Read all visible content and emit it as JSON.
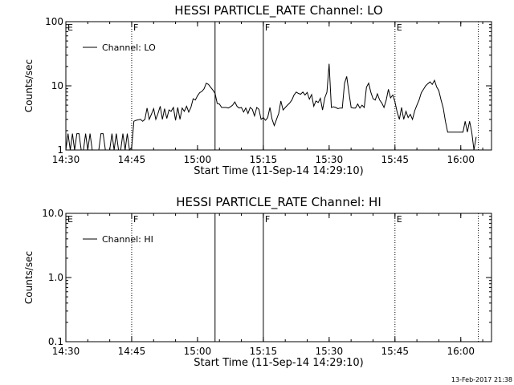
{
  "footer": {
    "timestamp": "13-Feb-2017 21:38"
  },
  "chart_data": [
    {
      "type": "line",
      "title": "HESSI PARTICLE_RATE Channel: LO",
      "xlabel": "Start Time (11-Sep-14 14:29:10)",
      "ylabel": "Counts/sec",
      "yscale": "log",
      "ylim": [
        1,
        100
      ],
      "xlim": [
        "14:30",
        "16:07"
      ],
      "x_ticks": [
        "14:30",
        "14:45",
        "15:00",
        "15:15",
        "15:30",
        "15:45",
        "16:00"
      ],
      "y_ticks": [
        "1",
        "10",
        "100"
      ],
      "legend": {
        "label": "Channel: LO",
        "position": "top-left"
      },
      "events": [
        {
          "label": "E",
          "time": "14:30",
          "style": "solid"
        },
        {
          "label": "F",
          "time": "14:45",
          "style": "dotted"
        },
        {
          "label": "",
          "time": "15:04",
          "style": "solid"
        },
        {
          "label": "F",
          "time": "15:15",
          "style": "solid"
        },
        {
          "label": "E",
          "time": "15:45",
          "style": "dotted"
        },
        {
          "label": "",
          "time": "16:04",
          "style": "dotted"
        }
      ],
      "series": [
        {
          "name": "Channel: LO",
          "points": [
            [
              "14:30",
              1
            ],
            [
              "14:30.5",
              1.8
            ],
            [
              "14:31",
              1
            ],
            [
              "14:31.5",
              1.8
            ],
            [
              "14:32",
              1
            ],
            [
              "14:32.5",
              1.8
            ],
            [
              "14:33",
              1.8
            ],
            [
              "14:33.5",
              1
            ],
            [
              "14:34",
              1
            ],
            [
              "14:34.5",
              1.8
            ],
            [
              "14:35",
              1
            ],
            [
              "14:35.5",
              1.8
            ],
            [
              "14:36",
              1
            ],
            [
              "14:36.5",
              1
            ],
            [
              "14:37",
              1
            ],
            [
              "14:37.5",
              1
            ],
            [
              "14:38",
              1.8
            ],
            [
              "14:38.5",
              1.8
            ],
            [
              "14:39",
              1
            ],
            [
              "14:39.5",
              1
            ],
            [
              "14:40",
              1
            ],
            [
              "14:40.5",
              1.8
            ],
            [
              "14:41",
              1
            ],
            [
              "14:41.5",
              1.8
            ],
            [
              "14:42",
              1
            ],
            [
              "14:42.5",
              1
            ],
            [
              "14:43",
              1.8
            ],
            [
              "14:43.5",
              1
            ],
            [
              "14:44",
              1.8
            ],
            [
              "14:44.5",
              1
            ],
            [
              "14:45",
              1.1
            ],
            [
              "14:45.5",
              2.8
            ],
            [
              "14:46",
              2.9
            ],
            [
              "14:47",
              3.0
            ],
            [
              "14:47.5",
              2.8
            ],
            [
              "14:48",
              3.0
            ],
            [
              "14:48.5",
              4.5
            ],
            [
              "14:49",
              3.0
            ],
            [
              "14:49.5",
              3.6
            ],
            [
              "14:50",
              4.4
            ],
            [
              "14:50.5",
              3.0
            ],
            [
              "14:51",
              3.7
            ],
            [
              "14:51.5",
              4.8
            ],
            [
              "14:52",
              3.0
            ],
            [
              "14:52.5",
              4.4
            ],
            [
              "14:53",
              3.1
            ],
            [
              "14:53.5",
              4.2
            ],
            [
              "14:54",
              4.0
            ],
            [
              "14:54.5",
              4.6
            ],
            [
              "14:55",
              2.9
            ],
            [
              "14:55.5",
              4.6
            ],
            [
              "14:56",
              3.0
            ],
            [
              "14:56.5",
              4.5
            ],
            [
              "14:57",
              4.0
            ],
            [
              "14:57.5",
              4.8
            ],
            [
              "14:58",
              3.9
            ],
            [
              "14:58.5",
              4.6
            ],
            [
              "14:59",
              6.3
            ],
            [
              "14:59.5",
              6.0
            ],
            [
              "15:00",
              7.0
            ],
            [
              "15:00.5",
              7.8
            ],
            [
              "15:01",
              8.2
            ],
            [
              "15:01.5",
              9.0
            ],
            [
              "15:02",
              11.0
            ],
            [
              "15:02.5",
              10.5
            ],
            [
              "15:03",
              9.5
            ],
            [
              "15:03.5",
              8.6
            ],
            [
              "15:04",
              7.6
            ],
            [
              "15:04.5",
              5.3
            ],
            [
              "15:05",
              5.2
            ],
            [
              "15:05.5",
              4.6
            ],
            [
              "15:06",
              4.6
            ],
            [
              "15:06.5",
              4.6
            ],
            [
              "15:07",
              4.5
            ],
            [
              "15:07.5",
              4.7
            ],
            [
              "15:08",
              5.0
            ],
            [
              "15:08.5",
              5.6
            ],
            [
              "15:09",
              4.8
            ],
            [
              "15:09.5",
              4.5
            ],
            [
              "15:10",
              4.6
            ],
            [
              "15:10.5",
              3.9
            ],
            [
              "15:11",
              4.5
            ],
            [
              "15:11.5",
              3.7
            ],
            [
              "15:12",
              4.6
            ],
            [
              "15:12.5",
              4.3
            ],
            [
              "15:13",
              3.4
            ],
            [
              "15:13.5",
              4.6
            ],
            [
              "15:14",
              4.3
            ],
            [
              "15:14.5",
              3.0
            ],
            [
              "15:15",
              3.2
            ],
            [
              "15:15.5",
              2.9
            ],
            [
              "15:16",
              3.2
            ],
            [
              "15:16.5",
              4.6
            ],
            [
              "15:17",
              3.0
            ],
            [
              "15:17.5",
              2.4
            ],
            [
              "15:18",
              3.0
            ],
            [
              "15:18.5",
              3.7
            ],
            [
              "15:19",
              5.8
            ],
            [
              "15:19.5",
              4.2
            ],
            [
              "15:20",
              4.6
            ],
            [
              "15:20.5",
              5.0
            ],
            [
              "15:21",
              5.4
            ],
            [
              "15:21.5",
              6.0
            ],
            [
              "15:22",
              7.2
            ],
            [
              "15:22.5",
              8.0
            ],
            [
              "15:23",
              7.6
            ],
            [
              "15:23.5",
              7.4
            ],
            [
              "15:24",
              8.0
            ],
            [
              "15:24.5",
              7.2
            ],
            [
              "15:25",
              7.9
            ],
            [
              "15:25.5",
              6.2
            ],
            [
              "15:26",
              7.3
            ],
            [
              "15:26.5",
              4.8
            ],
            [
              "15:27",
              5.8
            ],
            [
              "15:27.5",
              5.5
            ],
            [
              "15:28",
              6.4
            ],
            [
              "15:28.5",
              4.2
            ],
            [
              "15:29",
              6.5
            ],
            [
              "15:29.5",
              8.0
            ],
            [
              "15:30",
              22.0
            ],
            [
              "15:30.5",
              4.6
            ],
            [
              "15:31",
              4.7
            ],
            [
              "15:31.5",
              4.6
            ],
            [
              "15:32",
              4.4
            ],
            [
              "15:32.5",
              4.5
            ],
            [
              "15:33",
              4.5
            ],
            [
              "15:33.5",
              11.0
            ],
            [
              "15:34",
              14.0
            ],
            [
              "15:34.5",
              8.0
            ],
            [
              "15:35",
              4.6
            ],
            [
              "15:35.5",
              4.5
            ],
            [
              "15:36",
              4.5
            ],
            [
              "15:36.5",
              5.2
            ],
            [
              "15:37",
              4.5
            ],
            [
              "15:37.5",
              5.0
            ],
            [
              "15:38",
              4.6
            ],
            [
              "15:38.5",
              9.5
            ],
            [
              "15:39",
              11.0
            ],
            [
              "15:39.5",
              8.0
            ],
            [
              "15:40",
              6.3
            ],
            [
              "15:40.5",
              6.0
            ],
            [
              "15:41",
              7.5
            ],
            [
              "15:41.5",
              6.0
            ],
            [
              "15:42",
              5.4
            ],
            [
              "15:42.5",
              4.6
            ],
            [
              "15:43",
              6.0
            ],
            [
              "15:43.5",
              8.8
            ],
            [
              "15:44",
              6.5
            ],
            [
              "15:44.5",
              7.2
            ],
            [
              "15:45",
              5.6
            ],
            [
              "15:45.5",
              3.9
            ],
            [
              "15:46",
              3.0
            ],
            [
              "15:46.5",
              4.6
            ],
            [
              "15:47",
              3.0
            ],
            [
              "15:47.5",
              4.0
            ],
            [
              "15:48",
              3.2
            ],
            [
              "15:48.5",
              3.6
            ],
            [
              "15:49",
              3.0
            ],
            [
              "15:49.5",
              4.1
            ],
            [
              "15:50",
              5.0
            ],
            [
              "15:50.5",
              6.0
            ],
            [
              "15:51",
              7.8
            ],
            [
              "15:51.5",
              8.8
            ],
            [
              "15:52",
              10.0
            ],
            [
              "15:52.5",
              10.8
            ],
            [
              "15:53",
              11.5
            ],
            [
              "15:53.5",
              10.5
            ],
            [
              "15:54",
              12.2
            ],
            [
              "15:54.5",
              9.6
            ],
            [
              "15:55",
              8.4
            ],
            [
              "15:55.5",
              6.0
            ],
            [
              "15:56",
              4.5
            ],
            [
              "15:56.5",
              2.8
            ],
            [
              "15:57",
              1.9
            ],
            [
              "15:58",
              1.9
            ],
            [
              "15:59",
              1.9
            ],
            [
              "16:00",
              1.9
            ],
            [
              "16:00.5",
              1.9
            ],
            [
              "16:01",
              2.8
            ],
            [
              "16:01.5",
              1.9
            ],
            [
              "16:02",
              2.8
            ],
            [
              "16:02.5",
              1.9
            ],
            [
              "16:03",
              1.0
            ],
            [
              "16:03.5",
              1.6
            ]
          ]
        }
      ]
    },
    {
      "type": "line",
      "title": "HESSI PARTICLE_RATE Channel: HI",
      "xlabel": "Start Time (11-Sep-14 14:29:10)",
      "ylabel": "Counts/sec",
      "yscale": "log",
      "ylim": [
        0.1,
        10
      ],
      "xlim": [
        "14:30",
        "16:07"
      ],
      "x_ticks": [
        "14:30",
        "14:45",
        "15:00",
        "15:15",
        "15:30",
        "15:45",
        "16:00"
      ],
      "y_ticks": [
        "0.1",
        "1.0",
        "10.0"
      ],
      "legend": {
        "label": "Channel: HI",
        "position": "top-left"
      },
      "events": [
        {
          "label": "E",
          "time": "14:30",
          "style": "solid"
        },
        {
          "label": "F",
          "time": "14:45",
          "style": "dotted"
        },
        {
          "label": "",
          "time": "15:04",
          "style": "solid"
        },
        {
          "label": "F",
          "time": "15:15",
          "style": "solid"
        },
        {
          "label": "E",
          "time": "15:45",
          "style": "dotted"
        },
        {
          "label": "",
          "time": "16:04",
          "style": "dotted"
        }
      ],
      "series": [
        {
          "name": "Channel: HI",
          "points": []
        }
      ]
    }
  ]
}
